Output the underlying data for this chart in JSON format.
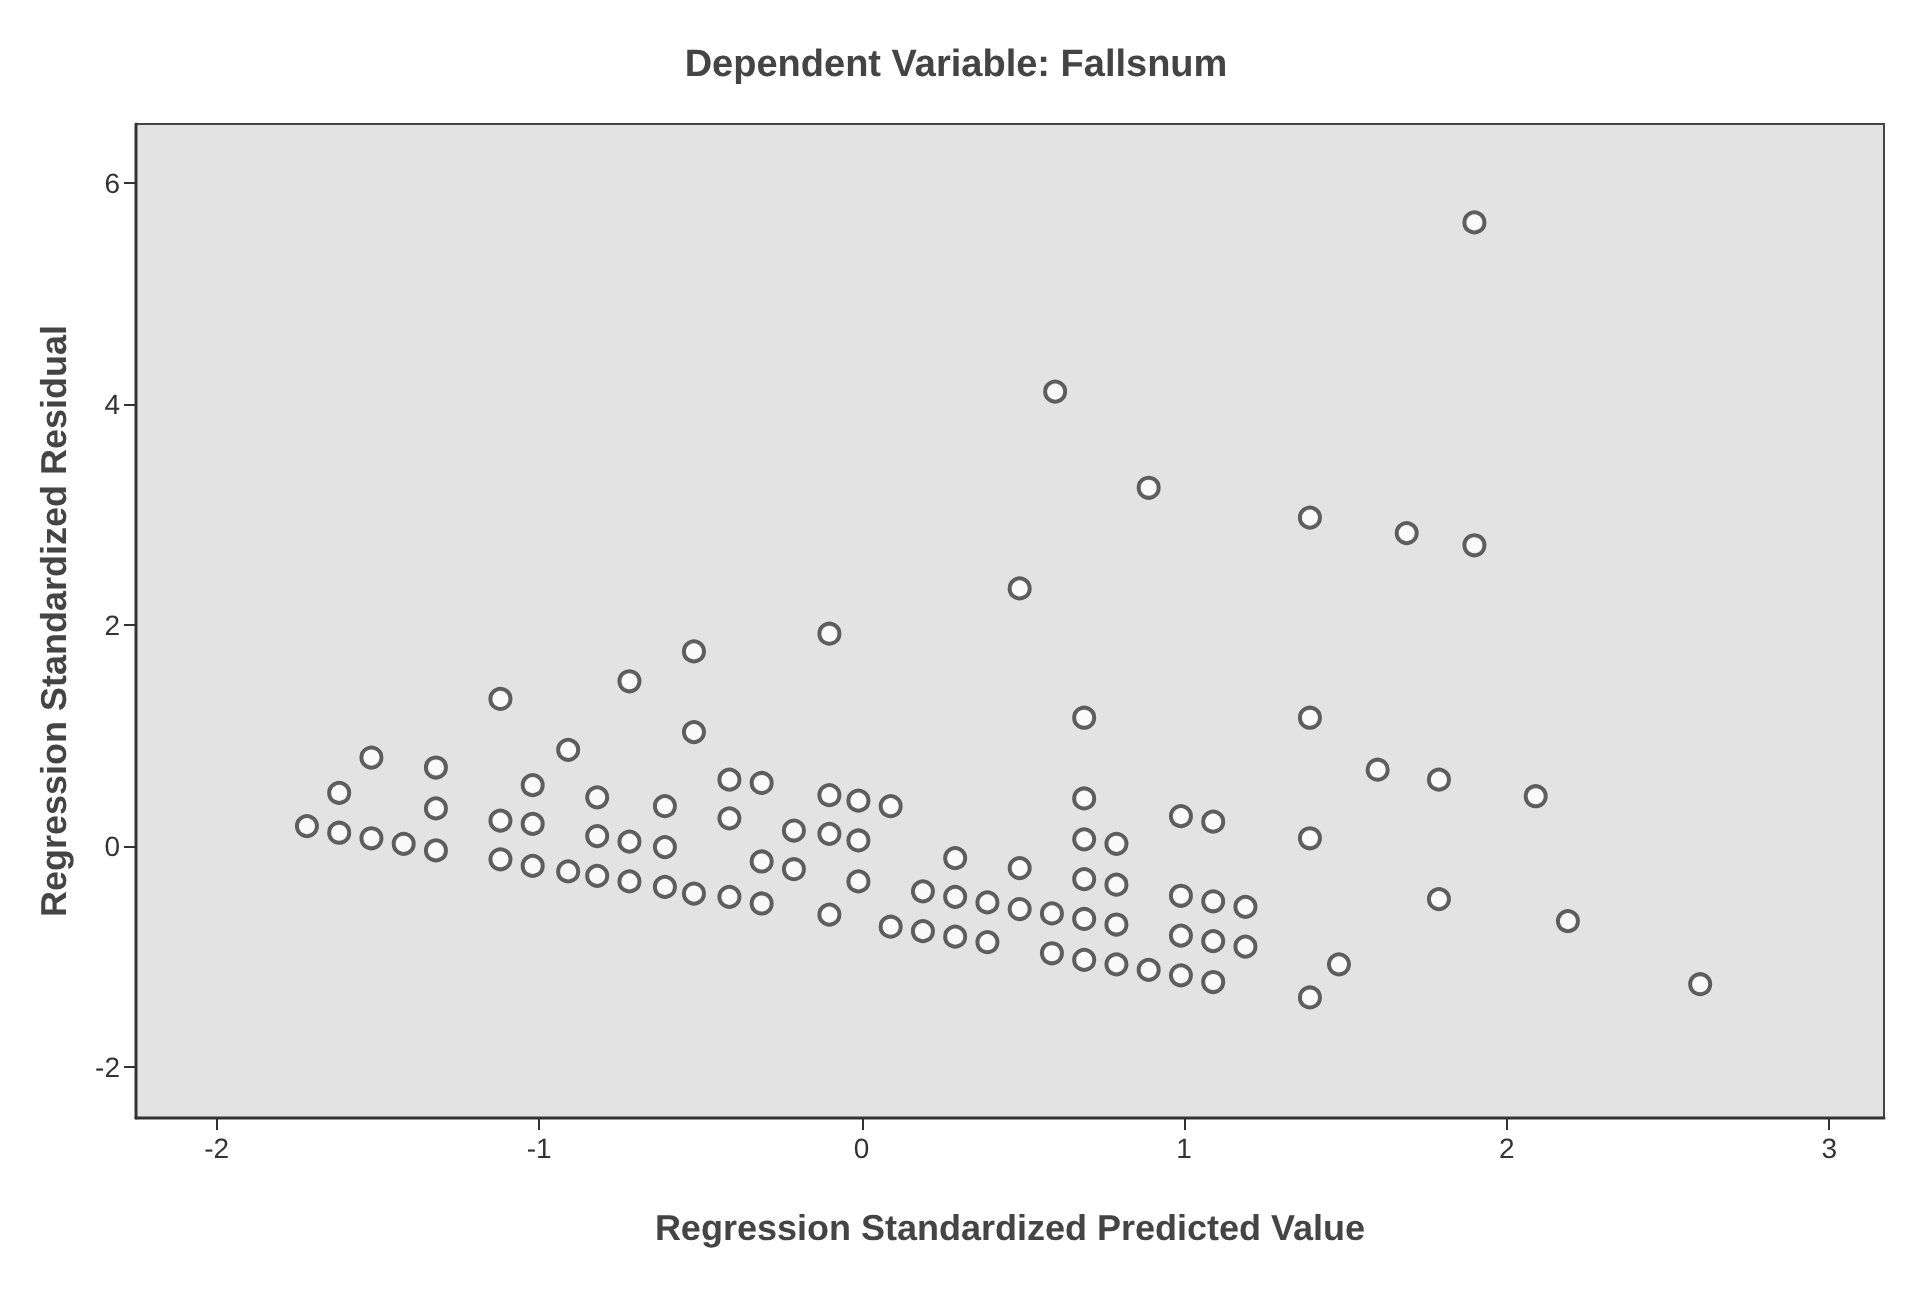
{
  "chart_data": {
    "type": "scatter",
    "title": "Dependent Variable: Fallsnum",
    "xlabel": "Regression Standardized Predicted Value",
    "ylabel": "Regression Standardized Residual",
    "marker": "circle",
    "grid": false,
    "xlim": [
      -2.25,
      3.17
    ],
    "ylim": [
      -2.46,
      6.53
    ],
    "xticks": [
      -2,
      -1,
      0,
      1,
      2,
      3
    ],
    "yticks": [
      -2,
      0,
      2,
      4,
      6
    ],
    "series": [
      {
        "color": "#3a3a3a",
        "x": [
          -1.72,
          -1.62,
          -1.62,
          -1.52,
          -1.52,
          -1.42,
          -1.32,
          -1.32,
          -1.32,
          -1.12,
          -1.12,
          -1.12,
          -1.02,
          -1.02,
          -1.02,
          -0.91,
          -0.91,
          -0.82,
          -0.82,
          -0.82,
          -0.72,
          -0.72,
          -0.72,
          -0.61,
          -0.61,
          -0.61,
          -0.52,
          -0.52,
          -0.52,
          -0.41,
          -0.41,
          -0.41,
          -0.31,
          -0.31,
          -0.31,
          -0.21,
          -0.21,
          -0.1,
          -0.1,
          -0.1,
          -0.1,
          -0.01,
          -0.01,
          -0.01,
          0.09,
          0.09,
          0.19,
          0.19,
          0.29,
          0.29,
          0.29,
          0.39,
          0.39,
          0.49,
          0.49,
          0.49,
          0.59,
          0.59,
          0.6,
          0.69,
          0.69,
          0.69,
          0.69,
          0.69,
          0.69,
          0.79,
          0.79,
          0.79,
          0.79,
          0.89,
          0.89,
          0.99,
          0.99,
          0.99,
          0.99,
          1.09,
          1.09,
          1.09,
          1.09,
          1.19,
          1.19,
          1.39,
          1.39,
          1.39,
          1.39,
          1.48,
          1.6,
          1.69,
          1.79,
          1.79,
          1.9,
          1.9,
          2.09,
          2.19,
          2.6
        ],
        "values": [
          0.18,
          0.48,
          0.12,
          0.8,
          0.07,
          0.02,
          0.71,
          0.34,
          -0.04,
          1.33,
          0.23,
          -0.12,
          0.55,
          0.2,
          -0.18,
          0.87,
          -0.23,
          0.44,
          0.09,
          -0.27,
          1.49,
          0.04,
          -0.32,
          0.36,
          -0.01,
          -0.37,
          1.76,
          1.03,
          -0.43,
          0.6,
          0.25,
          -0.46,
          0.57,
          -0.14,
          -0.52,
          0.14,
          -0.21,
          1.92,
          0.46,
          0.11,
          -0.62,
          0.41,
          0.05,
          -0.32,
          0.36,
          -0.73,
          -0.41,
          -0.77,
          -0.11,
          -0.46,
          -0.82,
          -0.51,
          -0.87,
          2.33,
          -0.2,
          -0.57,
          -0.61,
          -0.97,
          4.11,
          1.16,
          0.43,
          0.06,
          -0.3,
          -0.66,
          -1.03,
          0.02,
          -0.35,
          -0.71,
          -1.07,
          3.24,
          -1.12,
          0.27,
          -0.45,
          -0.81,
          -1.17,
          0.22,
          -0.5,
          -0.86,
          -1.23,
          -0.55,
          -0.91,
          2.97,
          1.16,
          0.07,
          -1.37,
          -1.07,
          0.69,
          2.83,
          0.6,
          -0.48,
          5.64,
          2.72,
          0.45,
          -0.68,
          -1.25
        ]
      }
    ]
  }
}
